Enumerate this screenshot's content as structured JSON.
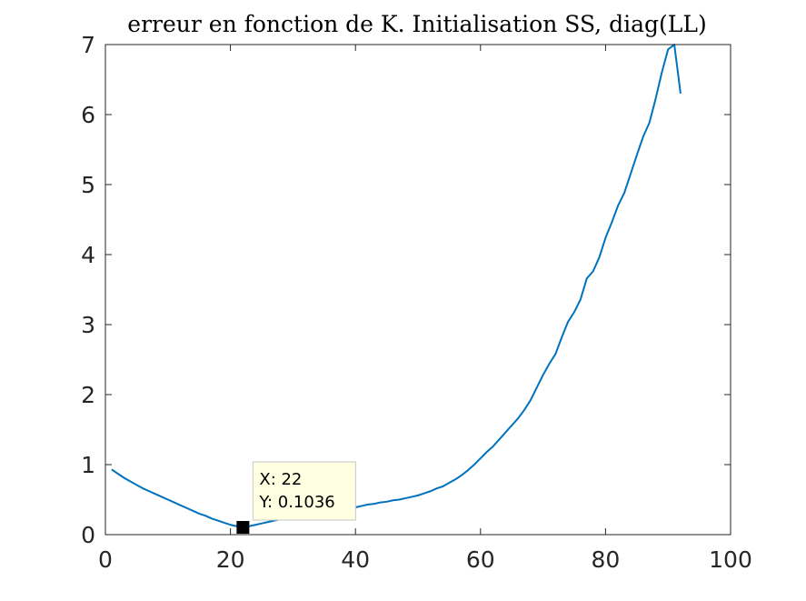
{
  "chart_data": {
    "type": "line",
    "title": "erreur en fonction de K. Initialisation SS, diag(LL)",
    "xlabel": "",
    "ylabel": "",
    "xlim": [
      0,
      100
    ],
    "ylim": [
      0,
      7
    ],
    "xticks": [
      0,
      20,
      40,
      60,
      80,
      100
    ],
    "yticks": [
      0,
      1,
      2,
      3,
      4,
      5,
      6,
      7
    ],
    "grid": false,
    "line_color": "#0072bd",
    "series": [
      {
        "x": [
          1,
          2,
          3,
          4,
          5,
          6,
          7,
          8,
          9,
          10,
          11,
          12,
          13,
          14,
          15,
          16,
          17,
          18,
          19,
          20,
          21,
          22,
          23,
          24,
          25,
          26,
          27,
          28,
          29,
          30,
          31,
          32,
          33,
          34,
          35,
          36,
          37,
          38,
          39,
          40,
          41,
          42,
          43,
          44,
          45,
          46,
          47,
          48,
          49,
          50,
          51,
          52,
          53,
          54,
          55,
          56,
          57,
          58,
          59,
          60,
          61,
          62,
          63,
          64,
          65,
          66,
          67,
          68,
          69,
          70,
          71,
          72,
          73,
          74,
          75,
          76,
          77,
          78,
          79,
          80,
          81,
          82,
          83,
          84,
          85,
          86,
          87,
          88,
          89,
          90,
          91,
          92
        ],
        "values": [
          0.93,
          0.87,
          0.81,
          0.76,
          0.71,
          0.66,
          0.62,
          0.58,
          0.54,
          0.5,
          0.46,
          0.42,
          0.38,
          0.34,
          0.3,
          0.27,
          0.23,
          0.2,
          0.17,
          0.14,
          0.12,
          0.1036,
          0.12,
          0.14,
          0.16,
          0.18,
          0.2,
          0.22,
          0.24,
          0.26,
          0.27,
          0.29,
          0.3,
          0.32,
          0.33,
          0.35,
          0.36,
          0.37,
          0.38,
          0.39,
          0.41,
          0.43,
          0.44,
          0.46,
          0.47,
          0.49,
          0.5,
          0.52,
          0.54,
          0.56,
          0.59,
          0.62,
          0.66,
          0.69,
          0.74,
          0.79,
          0.85,
          0.92,
          1.0,
          1.09,
          1.18,
          1.26,
          1.36,
          1.46,
          1.56,
          1.66,
          1.78,
          1.92,
          2.1,
          2.28,
          2.44,
          2.58,
          2.82,
          3.04,
          3.18,
          3.36,
          3.66,
          3.76,
          3.96,
          4.24,
          4.46,
          4.7,
          4.88,
          5.15,
          5.42,
          5.68,
          5.88,
          6.22,
          6.6,
          6.93,
          7.0,
          6.3
        ]
      }
    ],
    "datatip": {
      "x_text": "X: 22",
      "y_text": "Y: 0.1036",
      "x": 22,
      "y": 0.1036
    }
  }
}
